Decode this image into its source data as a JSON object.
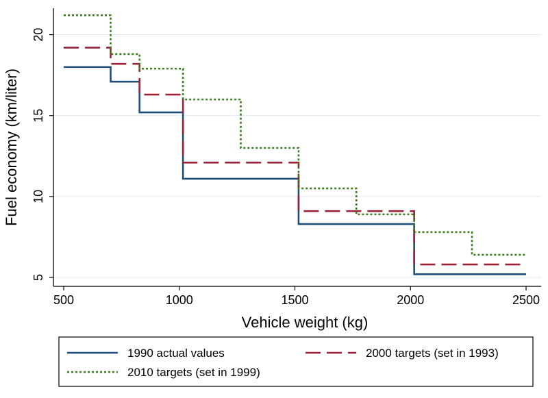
{
  "chart_data": {
    "type": "line",
    "step": true,
    "xlabel": "Vehicle weight (kg)",
    "ylabel": "Fuel economy (km/liter)",
    "xlim": [
      500,
      2500
    ],
    "ylim": [
      5,
      21
    ],
    "xticks": [
      500,
      1000,
      1500,
      2000,
      2500
    ],
    "yticks": [
      5,
      10,
      15,
      20
    ],
    "grid": "horizontal",
    "legend_position": "bottom",
    "series": [
      {
        "name": "1990 actual values",
        "color": "#1f4e79",
        "dash": "solid",
        "x": [
          500,
          703,
          828,
          1016,
          1516,
          2016,
          2500
        ],
        "y": [
          18.0,
          17.1,
          15.2,
          11.1,
          8.3,
          5.2,
          5.2
        ]
      },
      {
        "name": "2000 targets (set in 1993)",
        "color": "#9b2335",
        "dash": "dashed",
        "x": [
          500,
          703,
          828,
          1016,
          1516,
          2016,
          2500
        ],
        "y": [
          19.2,
          18.2,
          16.3,
          12.1,
          9.1,
          5.8,
          5.8
        ]
      },
      {
        "name": "2010 targets (set in 1999)",
        "color": "#3a7d1e",
        "dash": "dotted",
        "x": [
          500,
          703,
          828,
          1016,
          1266,
          1516,
          1766,
          2016,
          2266,
          2500
        ],
        "y": [
          21.2,
          18.8,
          17.9,
          16.0,
          13.0,
          10.5,
          8.9,
          7.8,
          6.4,
          6.4
        ]
      }
    ]
  }
}
